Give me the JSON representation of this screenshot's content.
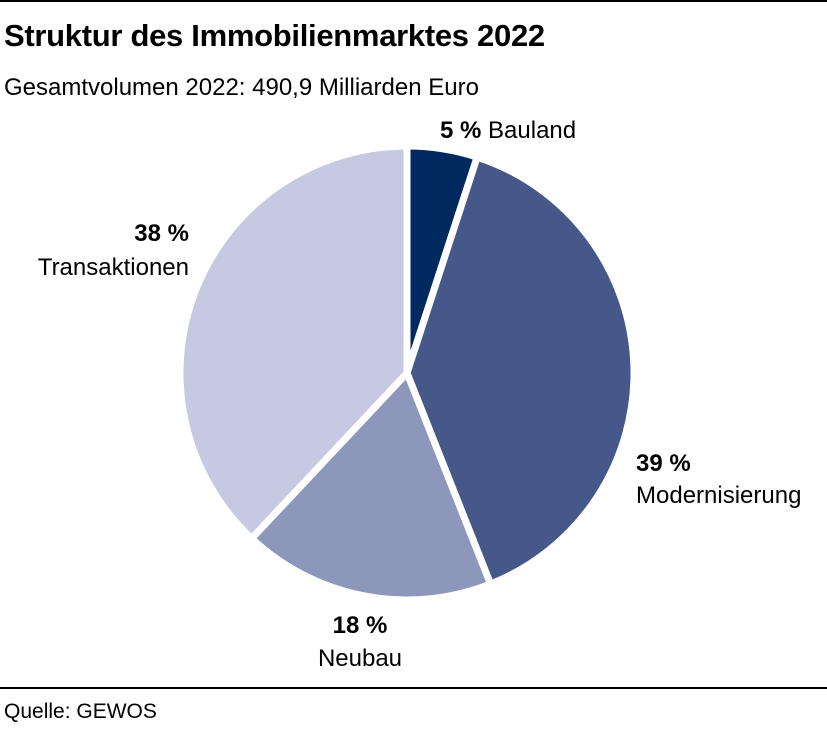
{
  "header": {
    "title": "Struktur des Immobilienmarktes 2022",
    "subtitle": "Gesamtvolumen 2022: 490,9 Milliarden Euro"
  },
  "footer": {
    "source": "Quelle: GEWOS"
  },
  "chart_data": {
    "type": "pie",
    "title": "Struktur des Immobilienmarktes 2022",
    "subtitle": "Gesamtvolumen 2022: 490,9 Milliarden Euro",
    "categories": [
      "Bauland",
      "Modernisierung",
      "Neubau",
      "Transaktionen"
    ],
    "values": [
      5,
      39,
      18,
      38
    ],
    "value_labels": [
      "5 %",
      "39 %",
      "18 %",
      "38 %"
    ],
    "unit": "%",
    "colors": [
      "#00295f",
      "#46588a",
      "#8d97bc",
      "#c6c9e1"
    ],
    "start_angle": "12 o'clock",
    "direction": "clockwise",
    "legend": "none"
  }
}
